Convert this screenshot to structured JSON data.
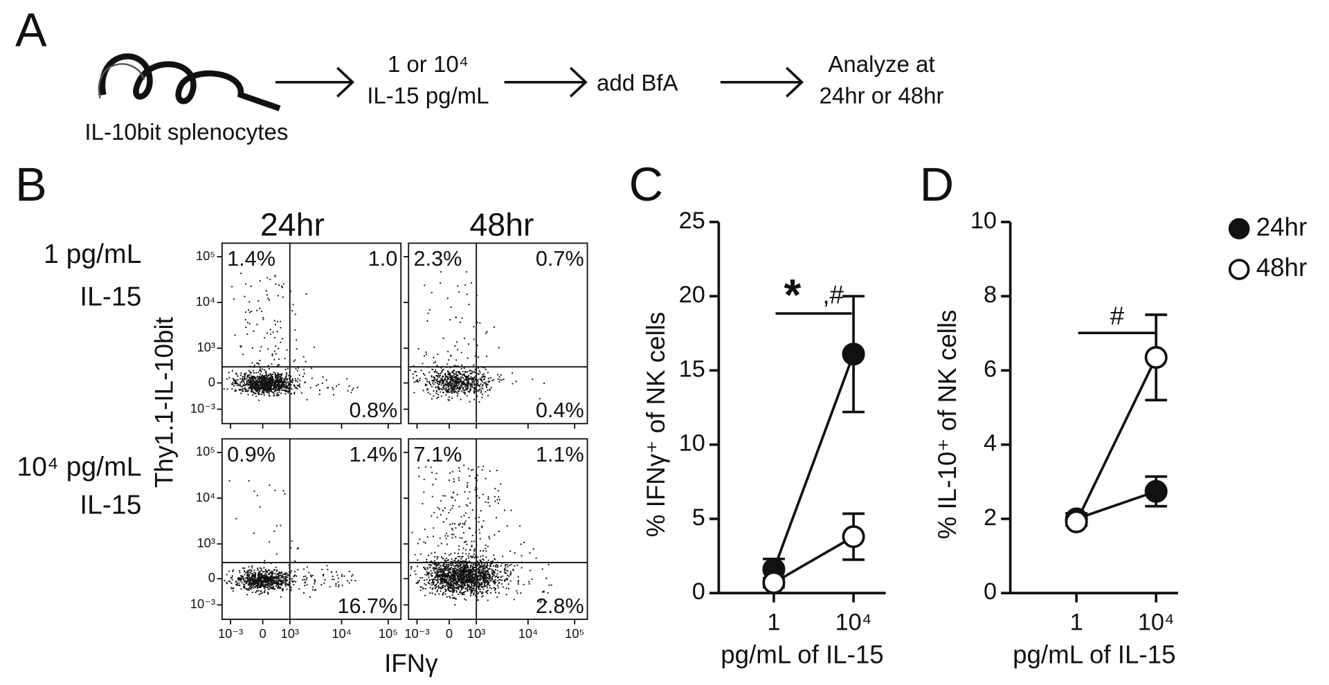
{
  "panel_a": {
    "label": "A",
    "source": "IL-10bit splenocytes",
    "steps": [
      [
        "1 or 10⁴",
        "IL-15 pg/mL"
      ],
      [
        "add BfA"
      ],
      [
        "Analyze at",
        "24hr or 48hr"
      ]
    ]
  },
  "panel_b": {
    "label": "B",
    "columns": [
      "24hr",
      "48hr"
    ],
    "rows": [
      [
        "1 pg/mL",
        "IL-15"
      ],
      [
        "10⁴ pg/mL",
        "IL-15"
      ]
    ],
    "y_axis_label": "Thy1.1-IL-10bit",
    "x_axis_label": "IFNγ",
    "y_tick_labels": [
      "10⁵",
      "10⁴",
      "10³",
      "0",
      "10⁻³"
    ],
    "x_tick_labels": [
      "10⁻³",
      "0",
      "10³",
      "10⁴",
      "10⁵"
    ],
    "quadrants": [
      [
        [
          "1.4%",
          "1.0",
          "0.8%"
        ],
        [
          "2.3%",
          "0.7%",
          "0.4%"
        ]
      ],
      [
        [
          "0.9%",
          "1.4%",
          "16.7%"
        ],
        [
          "7.1%",
          "1.1%",
          "2.8%"
        ]
      ]
    ]
  },
  "chart_data": [
    {
      "type": "line",
      "panel": "C",
      "x_label": "pg/mL of IL-15",
      "y_label": "% IFNγ⁺ of NK cells",
      "categories": [
        "1",
        "10⁴"
      ],
      "ylim": [
        0,
        25
      ],
      "yticks": [
        0,
        5,
        10,
        15,
        20,
        25
      ],
      "annotations": [
        "*",
        ",#"
      ],
      "series": [
        {
          "name": "24hr",
          "color": "#111111",
          "marker_fill": "#111111",
          "values": [
            1.6,
            16.1
          ],
          "errors": [
            0.7,
            3.9
          ]
        },
        {
          "name": "48hr",
          "color": "#111111",
          "marker_fill": "#ffffff",
          "values": [
            0.7,
            3.8
          ],
          "errors": [
            0.3,
            1.55
          ]
        }
      ]
    },
    {
      "type": "line",
      "panel": "D",
      "x_label": "pg/mL of IL-15",
      "y_label": "% IL-10⁺ of NK cells",
      "categories": [
        "1",
        "10⁴"
      ],
      "ylim": [
        0,
        10
      ],
      "yticks": [
        0,
        2,
        4,
        6,
        8,
        10
      ],
      "annotations": [
        "#"
      ],
      "legend": "right",
      "series": [
        {
          "name": "24hr",
          "color": "#111111",
          "marker_fill": "#111111",
          "values": [
            2.0,
            2.74
          ],
          "errors": [
            0.15,
            0.4
          ]
        },
        {
          "name": "48hr",
          "color": "#111111",
          "marker_fill": "#ffffff",
          "values": [
            1.92,
            6.35
          ],
          "errors": [
            0.1,
            1.15
          ]
        }
      ]
    }
  ]
}
